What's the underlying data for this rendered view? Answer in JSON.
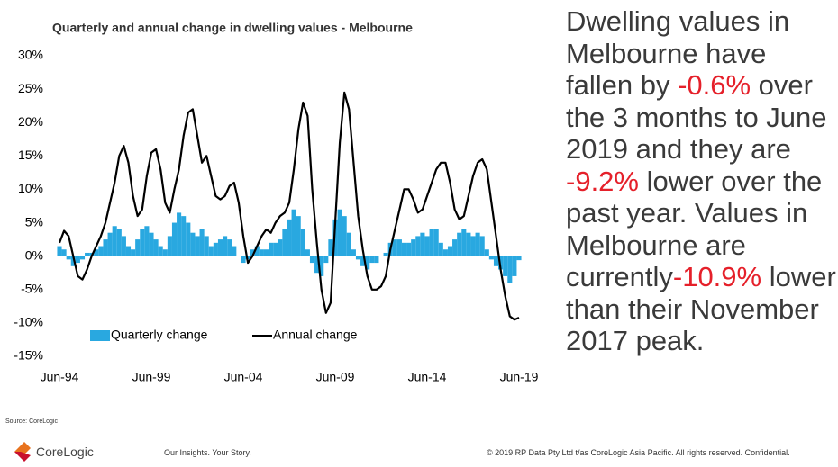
{
  "chart_data": {
    "type": "bar_line",
    "title": "Quarterly and annual change in dwelling values - Melbourne",
    "categories": [
      "Jun-94",
      null,
      null,
      null,
      null,
      null,
      null,
      null,
      null,
      null,
      null,
      null,
      null,
      null,
      null,
      null,
      null,
      null,
      null,
      null,
      "Jun-99",
      null,
      null,
      null,
      null,
      null,
      null,
      null,
      null,
      null,
      null,
      null,
      null,
      null,
      null,
      null,
      null,
      null,
      null,
      null,
      "Jun-04",
      null,
      null,
      null,
      null,
      null,
      null,
      null,
      null,
      null,
      null,
      null,
      null,
      null,
      null,
      null,
      null,
      null,
      null,
      null,
      "Jun-09",
      null,
      null,
      null,
      null,
      null,
      null,
      null,
      null,
      null,
      null,
      null,
      null,
      null,
      null,
      null,
      null,
      null,
      null,
      null,
      "Jun-14",
      null,
      null,
      null,
      null,
      null,
      null,
      null,
      null,
      null,
      null,
      null,
      null,
      null,
      null,
      null,
      null,
      null,
      null,
      null,
      "Jun-19"
    ],
    "series": [
      {
        "name": "Quarterly change",
        "color": "#29a8e0",
        "values": [
          1.5,
          1,
          -0.5,
          -1.5,
          -1,
          -0.5,
          0.5,
          0.5,
          1,
          1.5,
          2.5,
          3.5,
          4.5,
          4,
          3,
          1.5,
          1,
          2.5,
          4,
          4.5,
          3.5,
          2.5,
          1.5,
          1,
          3,
          5,
          6.5,
          6,
          5,
          3.5,
          3,
          4,
          3,
          1.5,
          2,
          2.5,
          3,
          2.5,
          1.5,
          0,
          -1,
          -0.5,
          1,
          1.5,
          1,
          1,
          2,
          2,
          2.5,
          4,
          5.5,
          7,
          6,
          4,
          1,
          -1,
          -2.5,
          -3,
          -1,
          2.5,
          5.5,
          7,
          6,
          3.5,
          1,
          -0.5,
          -1.5,
          -2,
          -1,
          -1,
          0,
          0.5,
          2,
          2.5,
          2.5,
          2,
          2,
          2.5,
          3,
          3.5,
          3,
          4,
          4,
          2,
          1,
          1.5,
          2.5,
          3.5,
          4,
          3.5,
          3,
          3.5,
          3,
          1,
          -0.5,
          -1.5,
          -2,
          -3,
          -4,
          -3,
          -0.6
        ]
      },
      {
        "name": "Annual change",
        "color": "#000000",
        "values": [
          2,
          3.8,
          3,
          0,
          -3,
          -3.5,
          -2,
          0,
          1.5,
          3,
          5,
          8,
          11,
          15,
          16.5,
          14,
          9,
          6,
          7,
          12,
          15.5,
          16,
          13,
          8,
          6.5,
          10,
          13,
          18,
          21.5,
          22,
          18,
          14,
          15,
          12,
          9,
          8.5,
          9,
          10.5,
          11,
          8,
          3,
          -1,
          0,
          1.5,
          3,
          4,
          3.5,
          5,
          6,
          6.5,
          8,
          13,
          19,
          23,
          21,
          10,
          2,
          -5,
          -8.5,
          -7,
          5,
          17,
          24.5,
          22,
          14,
          6,
          1,
          -3,
          -5,
          -5,
          -4.5,
          -3,
          1,
          4,
          7,
          10,
          10,
          8.5,
          6.5,
          7,
          9,
          11,
          13,
          14,
          14,
          11,
          7,
          5.5,
          6,
          9,
          12,
          14,
          14.5,
          13,
          8,
          3,
          -2,
          -6,
          -9,
          -9.5,
          -9.2
        ]
      }
    ],
    "ylim": [
      -15,
      30
    ],
    "yticks": [
      {
        "value": -15,
        "label": "-15%"
      },
      {
        "value": -10,
        "label": "-10%"
      },
      {
        "value": -5,
        "label": "-5%"
      },
      {
        "value": 0,
        "label": "0%"
      },
      {
        "value": 5,
        "label": "5%"
      },
      {
        "value": 10,
        "label": "10%"
      },
      {
        "value": 15,
        "label": "15%"
      },
      {
        "value": 20,
        "label": "20%"
      },
      {
        "value": 25,
        "label": "25%"
      },
      {
        "value": 30,
        "label": "30%"
      }
    ]
  },
  "commentary": [
    "Dwelling values in Melbourne have fallen by ",
    "-0.6%",
    " over the 3 months to June 2019 and they are ",
    "-9.2%",
    " lower over the past year. Values in Melbourne are currently",
    "-10.9%",
    " lower than their November 2017 peak."
  ],
  "footer": {
    "source": "Source: CoreLogic",
    "logo": "CoreLogic",
    "tagline": "Our Insights. Your Story.",
    "copyright": "© 2019 RP Data Pty Ltd t/as CoreLogic Asia Pacific. All rights reserved. Confidential."
  }
}
